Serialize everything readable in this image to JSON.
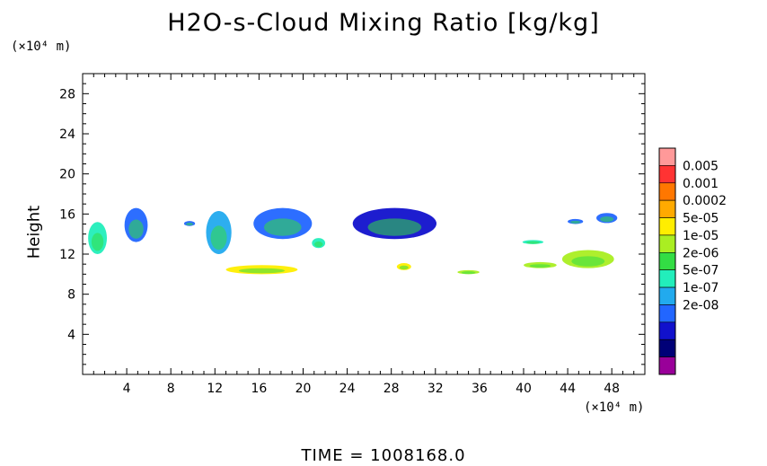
{
  "chart_data": {
    "type": "heatmap",
    "title": "H2O-s-Cloud Mixing Ratio [kg/kg]",
    "ylabel": "Height",
    "y_unit": "(×10⁴ m)",
    "x_unit": "(×10⁴ m)",
    "xlim": [
      0,
      51
    ],
    "ylim": [
      0,
      30
    ],
    "x_ticks": [
      4,
      8,
      12,
      16,
      20,
      24,
      28,
      32,
      36,
      40,
      44,
      48
    ],
    "y_ticks": [
      4,
      8,
      12,
      16,
      20,
      24,
      28
    ],
    "footer": "TIME = 1008168.0",
    "legend": {
      "levels": [
        "0.005",
        "0.001",
        "0.0002",
        "5e-05",
        "1e-05",
        "2e-06",
        "5e-07",
        "1e-07",
        "2e-08"
      ],
      "colors": [
        "#ff9999",
        "#ff3333",
        "#ff7700",
        "#ffaa00",
        "#ffee00",
        "#aaee22",
        "#33dd44",
        "#22eebb",
        "#22aaee",
        "#2266ff",
        "#1111cc",
        "#000077",
        "#990099"
      ]
    },
    "cloud_regions": [
      {
        "x": [
          0.5,
          2.2
        ],
        "y": [
          12.0,
          15.2
        ],
        "level": "2e-06"
      },
      {
        "x": [
          3.8,
          5.9
        ],
        "y": [
          13.2,
          16.6
        ],
        "level": "1e-07"
      },
      {
        "x": [
          9.2,
          10.2
        ],
        "y": [
          14.8,
          15.3
        ],
        "level": "1e-07"
      },
      {
        "x": [
          11.2,
          13.5
        ],
        "y": [
          12.0,
          16.3
        ],
        "level": "5e-07"
      },
      {
        "x": [
          15.5,
          20.8
        ],
        "y": [
          13.5,
          16.6
        ],
        "level": "1e-07"
      },
      {
        "x": [
          20.8,
          22.0
        ],
        "y": [
          12.6,
          13.6
        ],
        "level": "2e-06"
      },
      {
        "x": [
          24.5,
          32.1
        ],
        "y": [
          13.5,
          16.6
        ],
        "level": "2e-08"
      },
      {
        "x": [
          39.9,
          41.8
        ],
        "y": [
          13.0,
          13.4
        ],
        "level": "2e-06"
      },
      {
        "x": [
          44.0,
          45.4
        ],
        "y": [
          15.0,
          15.5
        ],
        "level": "1e-07"
      },
      {
        "x": [
          46.6,
          48.5
        ],
        "y": [
          15.1,
          16.1
        ],
        "level": "1e-07"
      },
      {
        "x": [
          13.0,
          19.5
        ],
        "y": [
          10.0,
          10.9
        ],
        "level": "0.0002"
      },
      {
        "x": [
          28.5,
          29.8
        ],
        "y": [
          10.4,
          11.1
        ],
        "level": "0.0002"
      },
      {
        "x": [
          40.0,
          43.0
        ],
        "y": [
          10.6,
          11.2
        ],
        "level": "5e-05"
      },
      {
        "x": [
          43.5,
          48.2
        ],
        "y": [
          10.6,
          12.4
        ],
        "level": "5e-05"
      },
      {
        "x": [
          34.0,
          36.0
        ],
        "y": [
          10.0,
          10.4
        ],
        "level": "5e-05"
      }
    ]
  }
}
